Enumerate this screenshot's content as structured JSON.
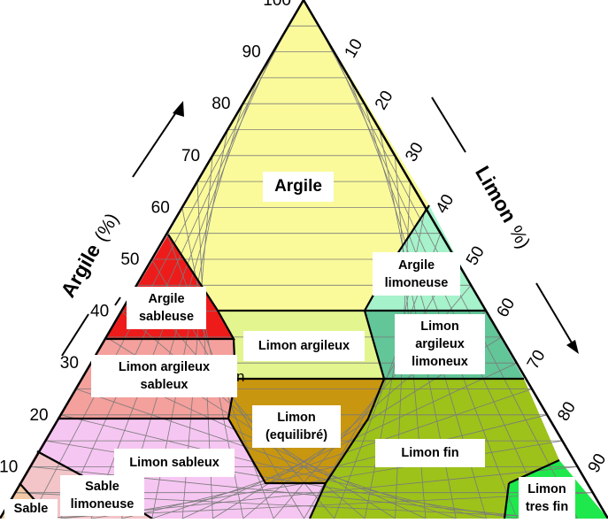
{
  "axes": {
    "argile": {
      "title": "Argile",
      "unit": "(%)",
      "ticks": [
        "10",
        "20",
        "30",
        "40",
        "50",
        "60",
        "70",
        "80",
        "90",
        "100"
      ]
    },
    "limon": {
      "title": "Limon",
      "unit": "%)",
      "ticks": [
        "10",
        "20",
        "30",
        "40",
        "50",
        "60",
        "70",
        "80",
        "90"
      ]
    }
  },
  "regions": [
    {
      "id": "argile",
      "label": "Argile",
      "color": "#fafa9b"
    },
    {
      "id": "argile-limoneuse",
      "label": "Argile limoneuse",
      "color": "#a6f2cb"
    },
    {
      "id": "argile-sableuse",
      "label": "Argile sableuse",
      "color": "#ee1b1b"
    },
    {
      "id": "limon-argileux",
      "label": "Limon argileux",
      "color": "#e2f58e"
    },
    {
      "id": "limon-argileux-limoneux",
      "label": "Limon argileux limoneux",
      "color": "#62c698"
    },
    {
      "id": "limon-argileux-sableux",
      "label": "Limon argileux sableux",
      "color": "#f4a09c"
    },
    {
      "id": "limon-equilibre",
      "label": "Limon (equilibré)",
      "color": "#c9960f"
    },
    {
      "id": "limon-fin",
      "label": "Limon fin",
      "color": "#9dc21a"
    },
    {
      "id": "limon-sableux",
      "label": "Limon sableux",
      "color": "#f6c6f2"
    },
    {
      "id": "sable-limoneuse",
      "label": "Sable limoneuse",
      "color": "#f3c4c8"
    },
    {
      "id": "sable",
      "label": "Sable",
      "color": "#f5c9a4"
    },
    {
      "id": "limon-tres-fin",
      "label": "Limon tres fin",
      "color": "#1ee84c"
    }
  ],
  "overlap_fragment": "n"
}
